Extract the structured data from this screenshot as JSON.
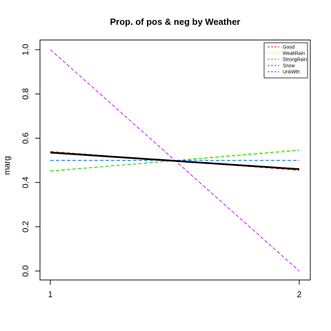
{
  "chart_data": {
    "type": "line",
    "title": "Prop. of pos & neg by Weather",
    "xlabel": "",
    "ylabel": "marg",
    "x": [
      1,
      2
    ],
    "x_ticks": [
      "1",
      "2"
    ],
    "y_ticks": [
      "0.0",
      "0.2",
      "0.4",
      "0.6",
      "0.8",
      "1.0"
    ],
    "xlim": [
      1,
      2
    ],
    "ylim": [
      0,
      1
    ],
    "grid": false,
    "legend_position": "top-right",
    "series": [
      {
        "name": "Good",
        "values": [
          0.54,
          0.455
        ],
        "color": "#ff0000",
        "dash": "dashed",
        "in_legend": true
      },
      {
        "name": "WeakRain",
        "values": [
          0.45,
          0.55
        ],
        "color": "#ccff00",
        "dash": "dashed",
        "in_legend": true
      },
      {
        "name": "StrongRain",
        "values": [
          0.452,
          0.545
        ],
        "color": "#00cc33",
        "dash": "dashed",
        "in_legend": true
      },
      {
        "name": "Snow",
        "values": [
          0.5,
          0.5
        ],
        "color": "#0066ff",
        "dash": "dashed",
        "in_legend": true
      },
      {
        "name": "UnkWth",
        "values": [
          1.0,
          0.0
        ],
        "color": "#cc00ff",
        "dash": "dashed",
        "in_legend": true
      },
      {
        "name": "",
        "values": [
          0.535,
          0.46
        ],
        "color": "#000000",
        "dash": "solid",
        "width": 2.5,
        "in_legend": false
      }
    ]
  }
}
